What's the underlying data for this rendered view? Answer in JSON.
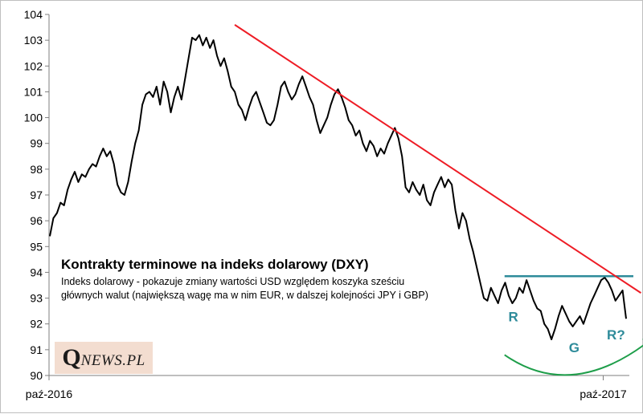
{
  "chart_data": {
    "type": "line",
    "title": "Kontrakty terminowe na indeks dolarowy (DXY)",
    "subtitle": "Indeks dolarowy - pokazuje zmiany wartości USD względem koszyka sześciu głównych walut (największą wagę ma w nim EUR, w dalszej kolejności JPY i GBP)",
    "xlabel": "",
    "ylabel": "",
    "ylim": [
      90,
      104
    ],
    "yticks": [
      "90",
      "91",
      "92",
      "93",
      "94",
      "95",
      "96",
      "97",
      "98",
      "99",
      "100",
      "101",
      "102",
      "103",
      "104"
    ],
    "xticks": [
      "paź-2016",
      "paź-2017"
    ],
    "x_range": [
      "2016-10",
      "2017-10 (+~1.5 mies.)"
    ],
    "grid": false,
    "legend": "none",
    "colors": {
      "series": "#000000",
      "trendline": "#ee1c25",
      "resistance": "#2e8b9a",
      "arc": "#1e9e4a",
      "labels": "#2e8b9a"
    },
    "series": [
      {
        "values": [
          95.4,
          96.1,
          96.3,
          96.7,
          96.6,
          97.2,
          97.6,
          97.9,
          97.5,
          97.8,
          97.7,
          98.0,
          98.2,
          98.1,
          98.5,
          98.8,
          98.5,
          98.7,
          98.2,
          97.4,
          97.1,
          97.0,
          97.5,
          98.3,
          99.0,
          99.5,
          100.5,
          100.9,
          101.0,
          100.8,
          101.2,
          100.5,
          101.4,
          101.0,
          100.2,
          100.8,
          101.2,
          100.7,
          101.5,
          102.3,
          103.1,
          103.0,
          103.2,
          102.8,
          103.1,
          102.7,
          103.0,
          102.4,
          102.0,
          102.3,
          101.8,
          101.2,
          101.0,
          100.5,
          100.3,
          99.9,
          100.4,
          100.8,
          101.0,
          100.6,
          100.2,
          99.8,
          99.7,
          99.9,
          100.5,
          101.2,
          101.4,
          101.0,
          100.7,
          100.9,
          101.3,
          101.6,
          101.2,
          100.8,
          100.5,
          99.9,
          99.4,
          99.7,
          100.0,
          100.5,
          100.9,
          101.1,
          100.8,
          100.4,
          99.9,
          99.7,
          99.3,
          99.5,
          99.0,
          98.7,
          99.1,
          98.9,
          98.5,
          98.8,
          98.6,
          99.0,
          99.3,
          99.6,
          99.2,
          98.5,
          97.3,
          97.1,
          97.5,
          97.2,
          97.0,
          97.4,
          96.8,
          96.6,
          97.1,
          97.4,
          97.7,
          97.3,
          97.6,
          97.4,
          96.4,
          95.7,
          96.3,
          96.0,
          95.3,
          94.8,
          94.2,
          93.6,
          93.0,
          92.9,
          93.4,
          93.1,
          92.8,
          93.3,
          93.6,
          93.1,
          92.8,
          93.0,
          93.4,
          93.2,
          93.7,
          93.3,
          92.9,
          92.6,
          92.5,
          92.0,
          91.8,
          91.4,
          91.8,
          92.3,
          92.7,
          92.4,
          92.1,
          91.9,
          92.1,
          92.3,
          92.0,
          92.4,
          92.8,
          93.1,
          93.4,
          93.7,
          93.8,
          93.6,
          93.3,
          92.9,
          93.1,
          93.3,
          92.2
        ]
      }
    ],
    "annotations": [
      {
        "text": "R",
        "x_frac": 0.8,
        "y": 92.1
      },
      {
        "text": "G",
        "x_frac": 0.905,
        "y": 90.9
      },
      {
        "text": "R?",
        "x_frac": 0.977,
        "y": 91.4
      }
    ],
    "trendline": {
      "from": {
        "x_frac": 0.32,
        "y": 103.6
      },
      "to": {
        "x_frac": 1.02,
        "y": 93.2
      }
    },
    "resistance": {
      "y": 93.85,
      "from_x_frac": 0.785,
      "to_x_frac": 1.05
    }
  },
  "logo": {
    "q": "Q",
    "rest": "NEWS.PL"
  }
}
